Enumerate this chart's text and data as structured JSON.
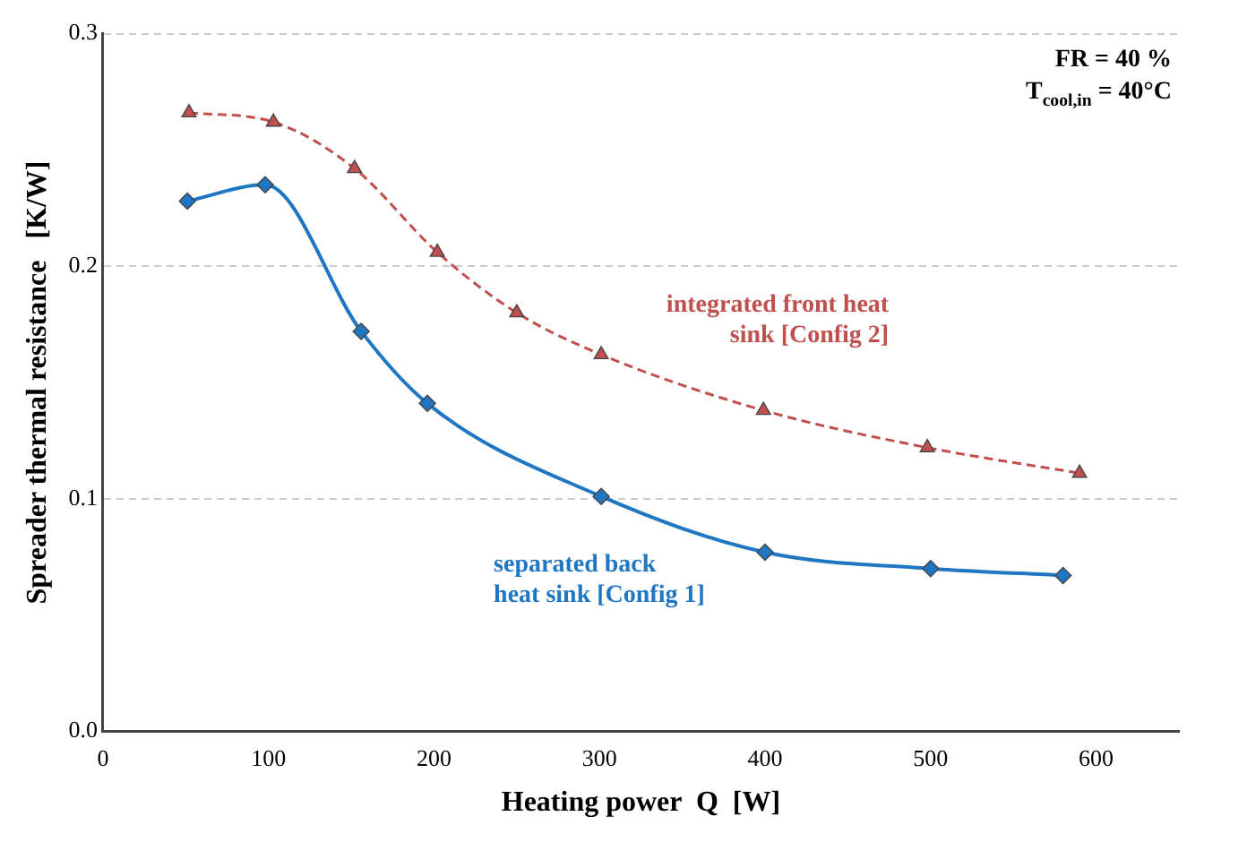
{
  "chart_data": {
    "type": "line",
    "xlabel": "Heating power  Q  [W]",
    "ylabel": "Spreader thermal resistance   [K/W]",
    "annotations": [
      "FR = 40 %",
      "T$_{cool,in}$ = 40°C"
    ],
    "xlim": [
      0,
      650
    ],
    "xticks": [
      0,
      100,
      200,
      300,
      400,
      500,
      600
    ],
    "ylim": [
      0,
      0.3
    ],
    "yticks": [
      {
        "value": 0,
        "label": "0.0"
      },
      {
        "value": 0.1,
        "label": "0.1"
      },
      {
        "value": 0.2,
        "label": "0.2"
      },
      {
        "value": 0.3,
        "label": "0.3"
      }
    ],
    "grid": "y",
    "legend": false,
    "series": [
      {
        "name": "separated back heat sink [Config 1]",
        "color": "#1f77c4",
        "marker": "diamond",
        "line_style": "solid",
        "x": [
          51,
          98,
          156,
          196,
          301,
          400,
          500,
          580
        ],
        "values": [
          0.228,
          0.235,
          0.172,
          0.141,
          0.101,
          0.077,
          0.07,
          0.067
        ]
      },
      {
        "name": "integrated front heat sink [Config 2]",
        "color": "#c0504d",
        "marker": "triangle",
        "line_style": "dashed",
        "x": [
          52,
          103,
          152,
          202,
          250,
          301,
          399,
          498,
          590
        ],
        "values": [
          0.266,
          0.262,
          0.242,
          0.206,
          0.18,
          0.162,
          0.138,
          0.122,
          0.111
        ]
      }
    ]
  }
}
